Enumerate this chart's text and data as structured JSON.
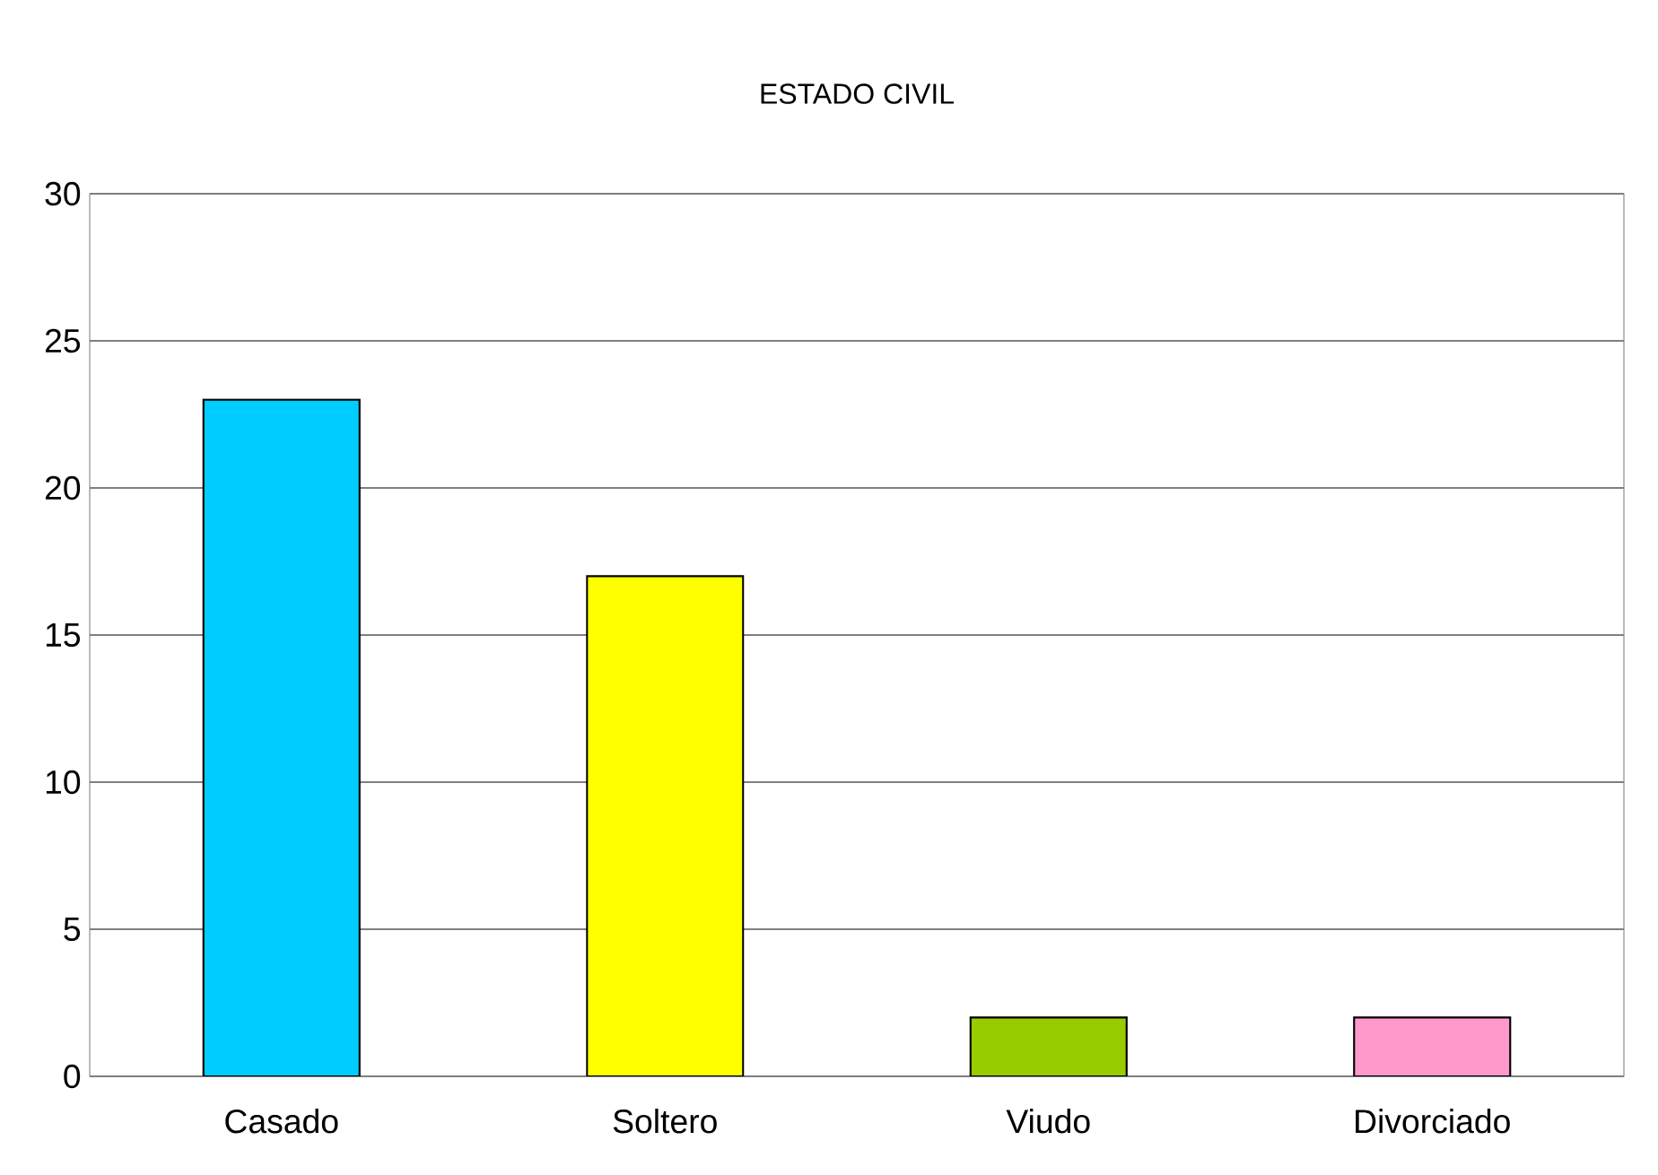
{
  "chart_data": {
    "type": "bar",
    "title": "ESTADO CIVIL",
    "categories": [
      "Casado",
      "Soltero",
      "Viudo",
      "Divorciado"
    ],
    "values": [
      23,
      17,
      2,
      2
    ],
    "colors": [
      "#00ccff",
      "#ffff00",
      "#99cc00",
      "#ff99cc"
    ],
    "ylim": [
      0,
      30
    ],
    "yticks": [
      0,
      5,
      10,
      15,
      20,
      25,
      30
    ],
    "grid": "y"
  }
}
